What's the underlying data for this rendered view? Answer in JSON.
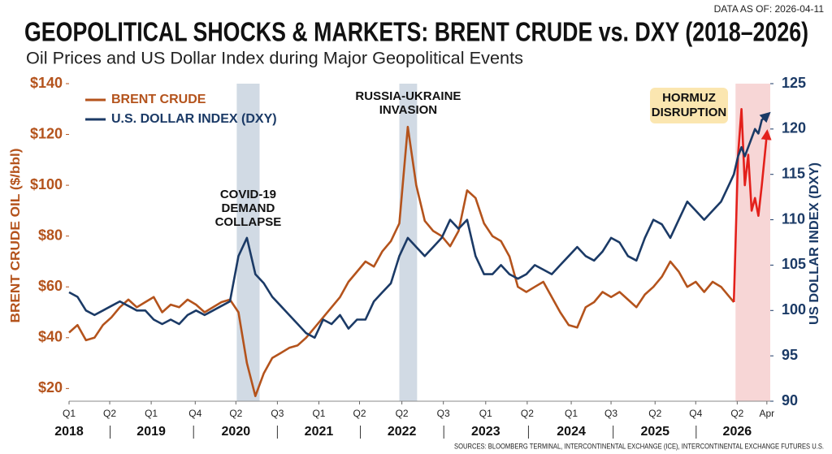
{
  "header": {
    "data_as_of": "DATA AS OF: 2026-04-11",
    "title": "GEOPOLITICAL SHOCKS & MARKETS: BRENT CRUDE vs. DXY (2018–2026)",
    "subtitle": "Oil Prices and US Dollar Index during Major Geopolitical Events"
  },
  "footer": {
    "sources": "SOURCES: BLOOMBERG TERMINAL, INTERCONTINENTAL EXCHANGE (ICE), INTERCONTINENTAL EXCHANGE FUTURES U.S."
  },
  "chart_data": {
    "type": "line",
    "y_label": "BRENT CRUDE OIL ($/bbl)",
    "y2_label": "US DOLLAR INDEX (DXY)",
    "xlim": [
      2018,
      2026.28
    ],
    "xticks": [
      {
        "value": 2018.0,
        "label": "Q1"
      },
      {
        "value": 2018.48,
        "label": "Q2"
      },
      {
        "value": 2018.97,
        "label": "Q1"
      },
      {
        "value": 2019.49,
        "label": "Q4"
      },
      {
        "value": 2019.97,
        "label": "Q2"
      },
      {
        "value": 2020.46,
        "label": "Q3"
      },
      {
        "value": 2020.95,
        "label": "Q1"
      },
      {
        "value": 2021.43,
        "label": "Q2"
      },
      {
        "value": 2021.93,
        "label": "Q2"
      },
      {
        "value": 2022.42,
        "label": "Q3"
      },
      {
        "value": 2022.92,
        "label": "Q1"
      },
      {
        "value": 2023.41,
        "label": "Q2"
      },
      {
        "value": 2023.93,
        "label": "Q1"
      },
      {
        "value": 2024.4,
        "label": "Q3"
      },
      {
        "value": 2024.92,
        "label": "Q2"
      },
      {
        "value": 2025.4,
        "label": "Q4"
      },
      {
        "value": 2025.89,
        "label": "Q2"
      },
      {
        "value": 2026.24,
        "label": "Apr"
      }
    ],
    "year_labels": [
      {
        "value": 2018.0,
        "label": "2018"
      },
      {
        "value": 2018.97,
        "label": "2019"
      },
      {
        "value": 2019.97,
        "label": "2020"
      },
      {
        "value": 2020.95,
        "label": "2021"
      },
      {
        "value": 2021.93,
        "label": "2022"
      },
      {
        "value": 2022.92,
        "label": "2023"
      },
      {
        "value": 2023.93,
        "label": "2024"
      },
      {
        "value": 2024.92,
        "label": "2025"
      },
      {
        "value": 2025.89,
        "label": "2026"
      }
    ],
    "ylim": [
      15,
      140
    ],
    "yticks": [
      {
        "value": 20,
        "label": "$20"
      },
      {
        "value": 40,
        "label": "$40"
      },
      {
        "value": 60,
        "label": "$60"
      },
      {
        "value": 80,
        "label": "$80"
      },
      {
        "value": 100,
        "label": "$100"
      },
      {
        "value": 120,
        "label": "$120"
      },
      {
        "value": 140,
        "label": "$140"
      }
    ],
    "y2lim": [
      90,
      125
    ],
    "y2ticks": [
      90,
      95,
      100,
      105,
      110,
      115,
      120,
      125
    ],
    "grid": false,
    "legend": "top-left",
    "x": [
      2018.0,
      2018.1,
      2018.2,
      2018.3,
      2018.4,
      2018.5,
      2018.6,
      2018.7,
      2018.8,
      2018.9,
      2019.0,
      2019.1,
      2019.2,
      2019.3,
      2019.4,
      2019.5,
      2019.6,
      2019.7,
      2019.8,
      2019.9,
      2020.0,
      2020.1,
      2020.2,
      2020.3,
      2020.4,
      2020.5,
      2020.6,
      2020.7,
      2020.8,
      2020.9,
      2021.0,
      2021.1,
      2021.2,
      2021.3,
      2021.4,
      2021.5,
      2021.6,
      2021.7,
      2021.8,
      2021.9,
      2022.0,
      2022.1,
      2022.2,
      2022.3,
      2022.4,
      2022.5,
      2022.6,
      2022.7,
      2022.8,
      2022.9,
      2023.0,
      2023.1,
      2023.2,
      2023.3,
      2023.4,
      2023.5,
      2023.6,
      2023.7,
      2023.8,
      2023.9,
      2024.0,
      2024.1,
      2024.2,
      2024.3,
      2024.4,
      2024.5,
      2024.6,
      2024.7,
      2024.8,
      2024.9,
      2025.0,
      2025.1,
      2025.2,
      2025.3,
      2025.4,
      2025.5,
      2025.6,
      2025.7,
      2025.8,
      2025.85,
      2025.9,
      2025.94,
      2025.98,
      2026.02,
      2026.06,
      2026.1,
      2026.14,
      2026.18,
      2026.24
    ],
    "series": [
      {
        "name": "BRENT CRUDE",
        "color": "#b4531c",
        "shock_color": "#e3201b",
        "values": [
          42,
          45,
          39,
          40,
          45,
          48,
          52,
          55,
          52,
          54,
          56,
          50,
          53,
          52,
          55,
          53,
          50,
          52,
          54,
          55,
          50,
          30,
          17,
          26,
          32,
          34,
          36,
          37,
          40,
          44,
          48,
          52,
          56,
          62,
          66,
          70,
          68,
          74,
          78,
          85,
          123,
          100,
          86,
          82,
          80,
          76,
          82,
          98,
          95,
          85,
          80,
          78,
          72,
          60,
          58,
          60,
          62,
          56,
          50,
          45,
          44,
          52,
          54,
          58,
          56,
          58,
          55,
          52,
          57,
          60,
          64,
          70,
          66,
          60,
          62,
          58,
          62,
          60,
          56,
          54,
          112,
          130,
          100,
          112,
          90,
          95,
          88,
          100,
          120
        ]
      },
      {
        "name": "U.S. DOLLAR INDEX (DXY)",
        "color": "#1b3a66",
        "axis": "y2",
        "values": [
          102,
          101.5,
          100,
          99.5,
          100,
          100.5,
          101,
          100.5,
          100,
          100,
          99,
          98.5,
          99,
          98.5,
          99.5,
          100,
          99.5,
          100,
          100.5,
          101,
          106,
          108,
          104,
          103,
          101.5,
          100.5,
          99.5,
          98.5,
          97.5,
          97,
          99,
          98.5,
          99.5,
          98,
          99,
          99,
          101,
          102,
          103,
          106,
          108,
          107,
          106,
          107,
          108,
          110,
          109,
          110,
          106,
          104,
          104,
          105,
          104,
          103.5,
          104,
          105,
          104.5,
          104,
          105,
          106,
          107,
          106,
          105.5,
          106.5,
          108,
          107.5,
          106,
          105.5,
          108,
          110,
          109.5,
          108,
          110,
          112,
          111,
          110,
          111,
          112,
          114,
          115,
          117,
          118,
          117,
          118,
          119,
          120,
          119.5,
          121,
          121.5
        ]
      }
    ],
    "events": [
      {
        "lines": [
          "COVID-19",
          "DEMAND",
          "COLLAPSE"
        ],
        "start": 2019.98,
        "end": 2020.25,
        "color": "#c9d3df"
      },
      {
        "lines": [
          "RUSSIA-UKRAINE",
          "INVASION"
        ],
        "start": 2021.9,
        "end": 2022.11,
        "color": "#c9d3df"
      },
      {
        "lines": [
          "HORMUZ",
          "DISRUPTION"
        ],
        "start": 2025.87,
        "end": 2026.28,
        "color": "#f6cfcf",
        "box": "#fbe6b0"
      }
    ]
  }
}
